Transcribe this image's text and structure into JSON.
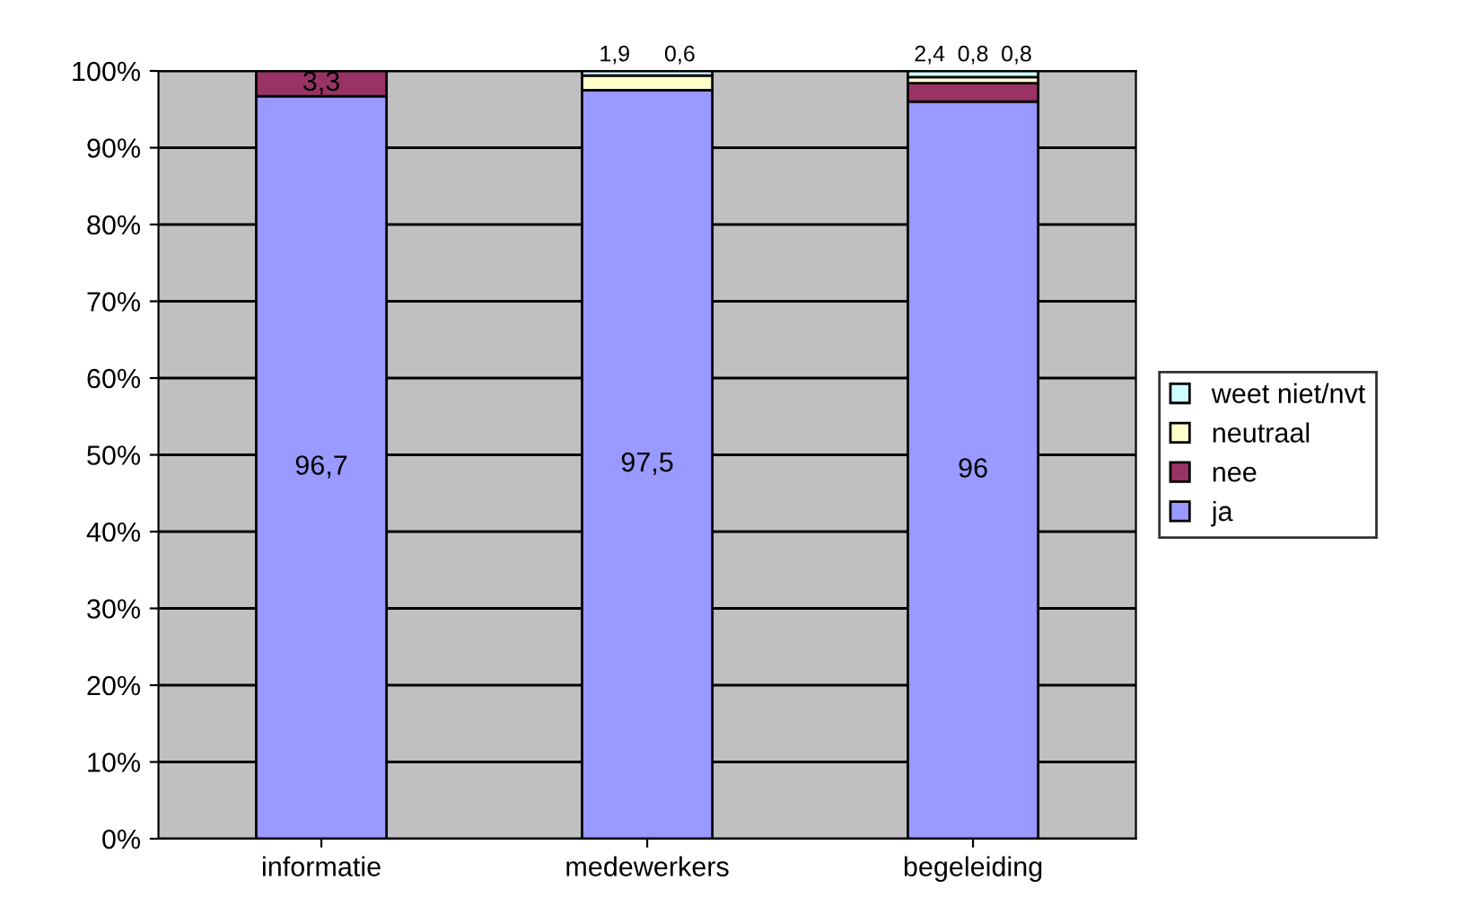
{
  "chart_data": {
    "type": "bar",
    "stacked": true,
    "categories": [
      "informatie",
      "medewerkers",
      "begeleiding"
    ],
    "series": [
      {
        "name": "ja",
        "color": "#9999ff",
        "values": [
          96.7,
          97.5,
          96
        ],
        "value_labels": [
          "96,7",
          "97,5",
          "96"
        ]
      },
      {
        "name": "nee",
        "color": "#993366",
        "values": [
          3.3,
          0,
          2.4
        ],
        "value_labels": [
          "3,3",
          null,
          "2,4"
        ]
      },
      {
        "name": "neutraal",
        "color": "#ffffcc",
        "values": [
          0,
          1.9,
          0.8
        ],
        "value_labels": [
          null,
          "1,9",
          "0,8"
        ]
      },
      {
        "name": "weet niet/nvt",
        "color": "#ccffff",
        "values": [
          0,
          0.6,
          0.8
        ],
        "value_labels": [
          null,
          "0,6",
          "0,8"
        ]
      }
    ],
    "ylim": [
      0,
      100
    ],
    "yticks": [
      {
        "value": 0,
        "label": "0%"
      },
      {
        "value": 10,
        "label": "10%"
      },
      {
        "value": 20,
        "label": "20%"
      },
      {
        "value": 30,
        "label": "30%"
      },
      {
        "value": 40,
        "label": "40%"
      },
      {
        "value": 50,
        "label": "50%"
      },
      {
        "value": 60,
        "label": "60%"
      },
      {
        "value": 70,
        "label": "70%"
      },
      {
        "value": 80,
        "label": "80%"
      },
      {
        "value": 90,
        "label": "90%"
      },
      {
        "value": 100,
        "label": "100%"
      }
    ],
    "grid": "y",
    "legend": "right"
  }
}
